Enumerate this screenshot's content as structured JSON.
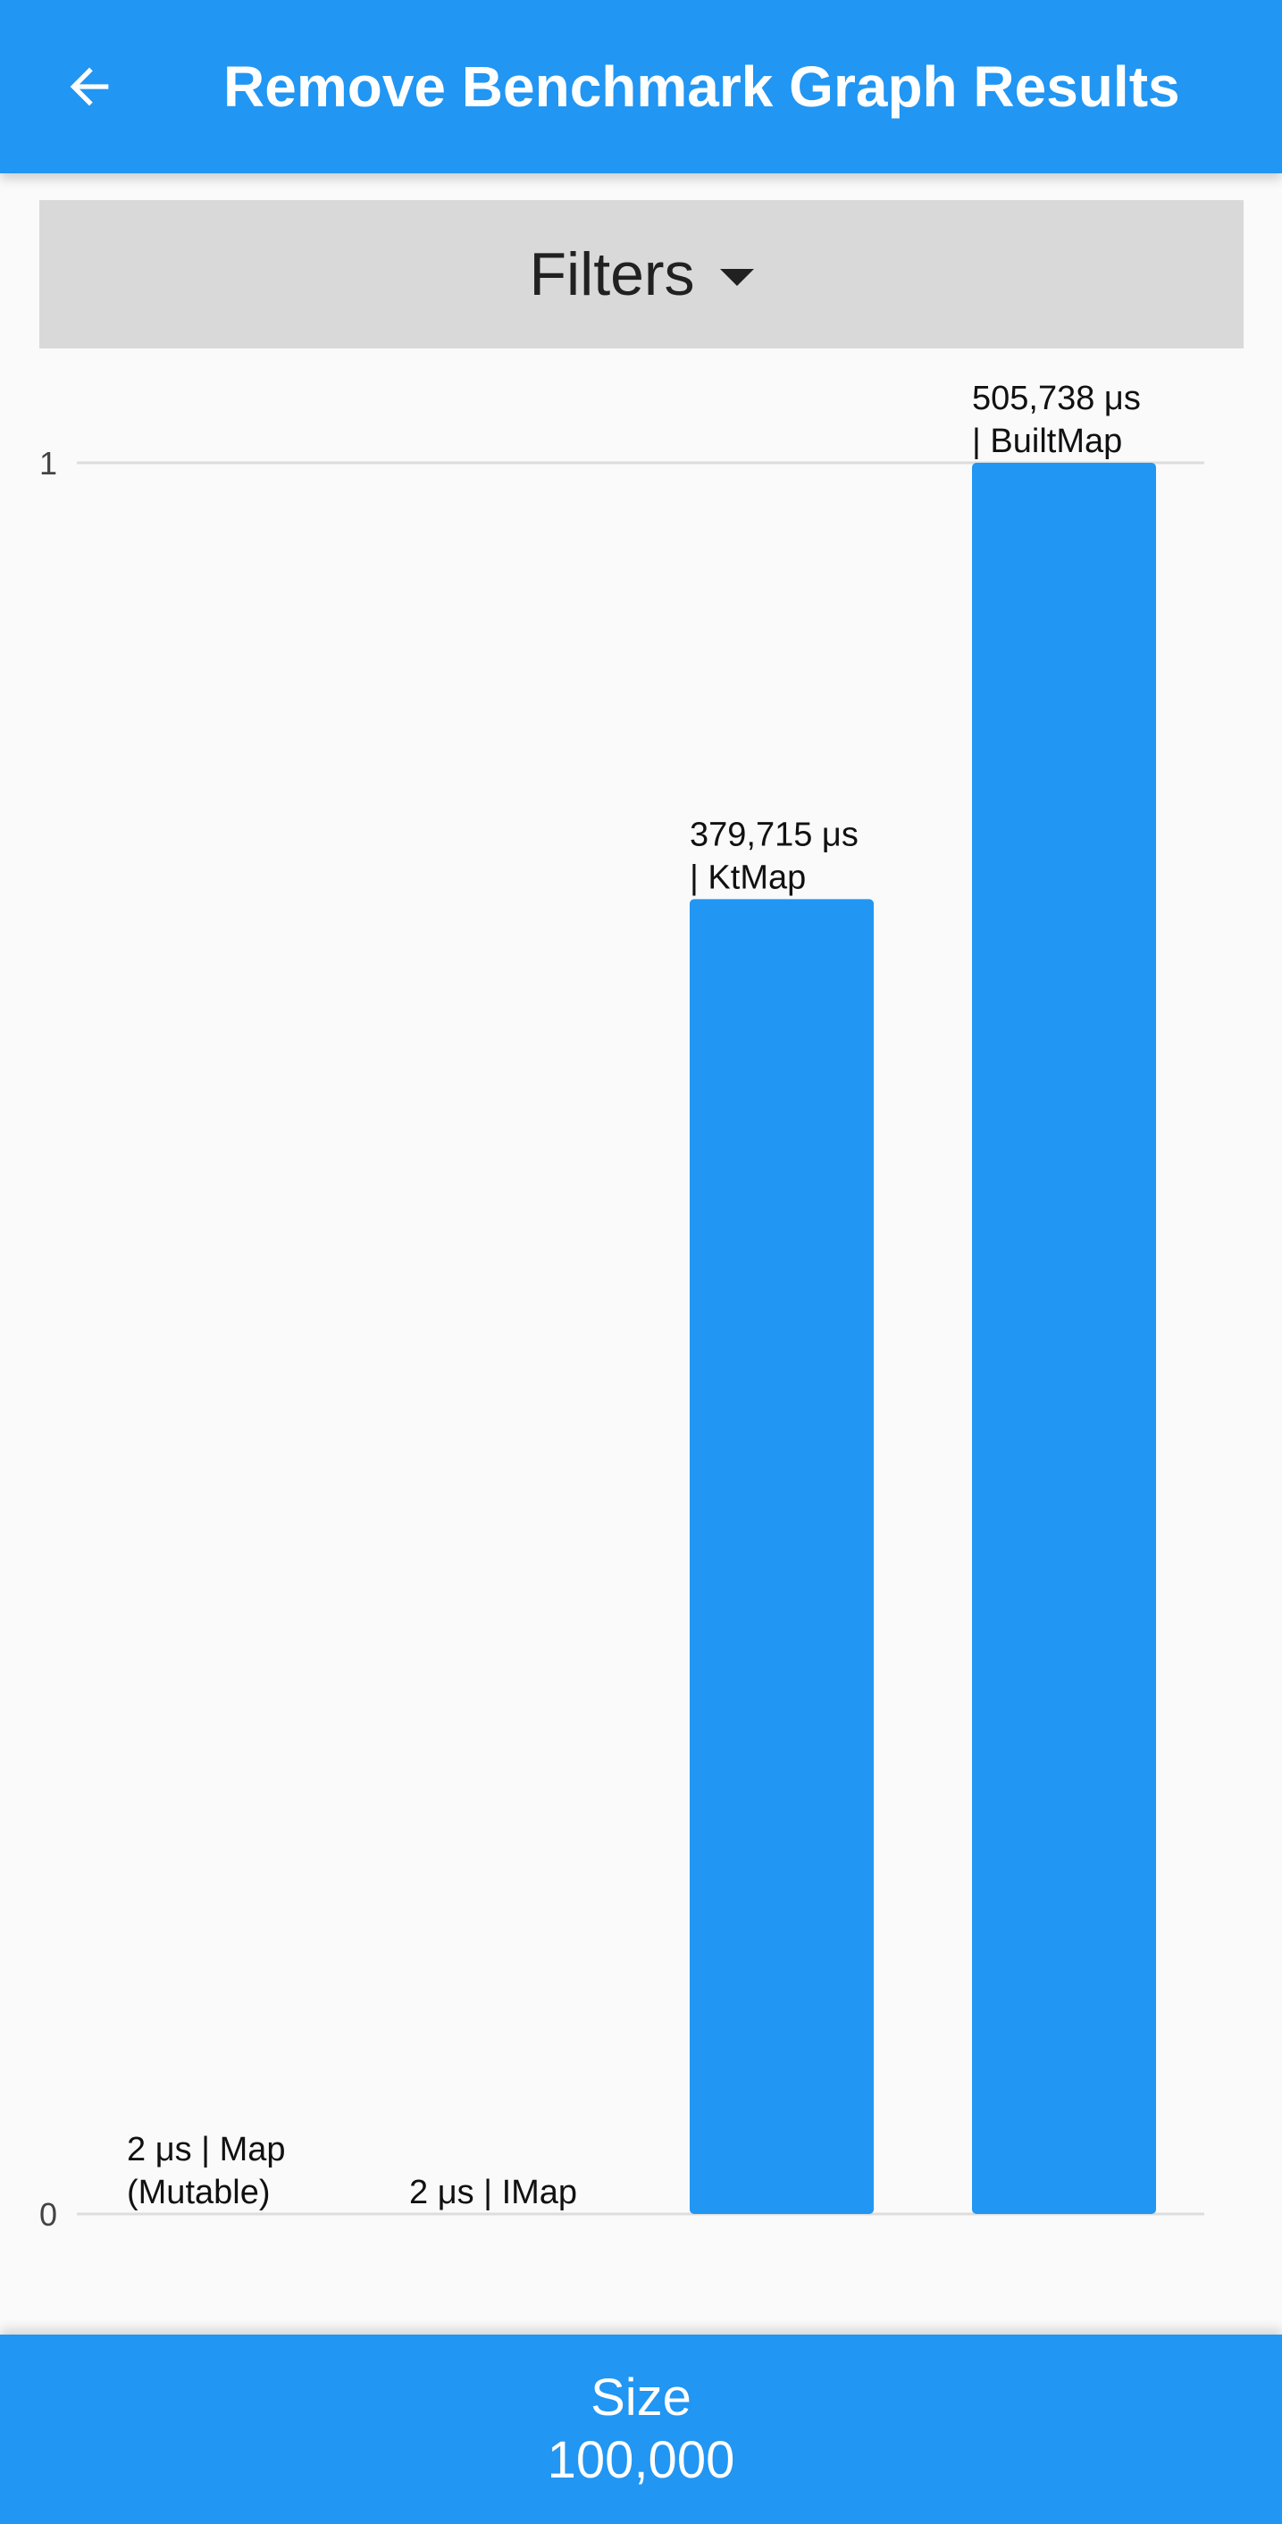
{
  "appbar": {
    "title": "Remove Benchmark Graph Results",
    "back_icon": "arrow-back-icon"
  },
  "filters": {
    "label": "Filters",
    "caret_icon": "caret-down-icon"
  },
  "bottom": {
    "size_label": "Size",
    "size_value": "100,000"
  },
  "colors": {
    "primary": "#2196f3",
    "filters_bg": "#d9d9d9",
    "background": "#fafafa"
  },
  "chart_data": {
    "type": "bar",
    "categories": [
      "Map (Mutable)",
      "IMap",
      "KtMap",
      "BuiltMap"
    ],
    "values": [
      2,
      2,
      379715,
      505738
    ],
    "normalized_values": [
      4e-06,
      4e-06,
      0.7508,
      1
    ],
    "unit": "μs",
    "bar_labels": [
      [
        "2 μs | Map",
        "(Mutable)"
      ],
      [
        "2 μs | IMap"
      ],
      [
        "379,715 μs",
        "| KtMap"
      ],
      [
        "505,738 μs",
        "| BuiltMap"
      ]
    ],
    "y_ticks": [
      "0",
      "1"
    ],
    "ylim": [
      0,
      1
    ],
    "grid": false,
    "legend": "none",
    "bar_color": "#2196f3"
  }
}
